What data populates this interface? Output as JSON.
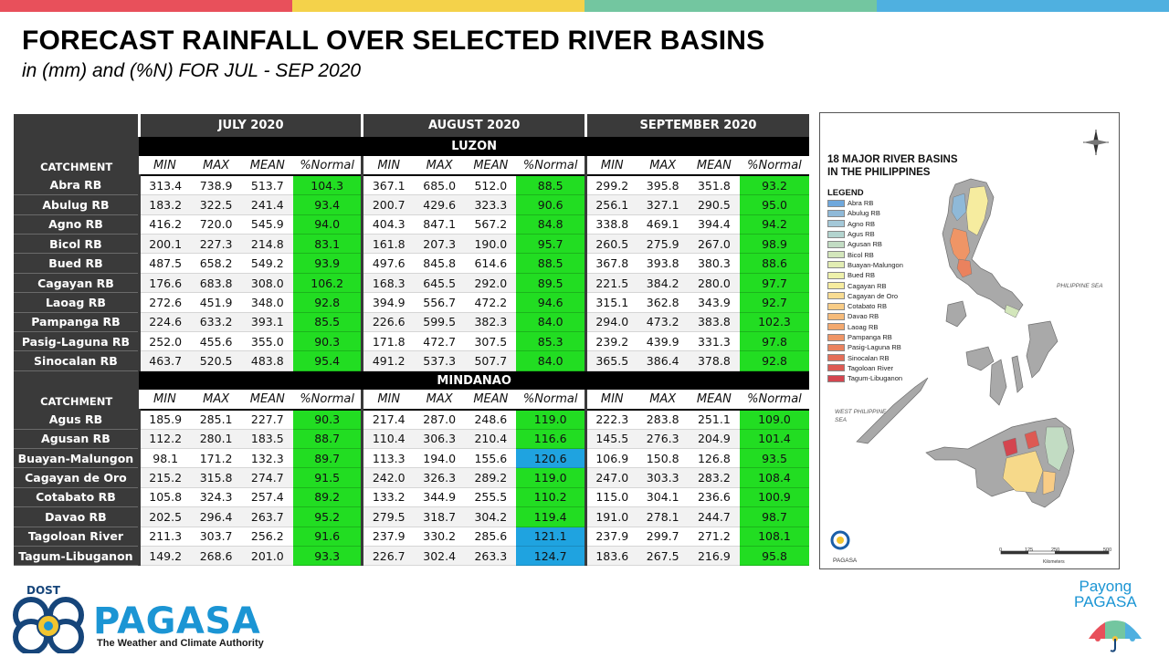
{
  "colors": {
    "bar1": "#e8505b",
    "bar2": "#f4d24a",
    "bar3": "#73c6a0",
    "bar4": "#4fb0e0",
    "green": "#22dd22",
    "blue": "#1fa3e0"
  },
  "title": "FORECAST RAINFALL OVER SELECTED RIVER BASINS",
  "subtitle": "in (mm) and (%N) FOR JUL - SEP 2020",
  "table": {
    "months": [
      "JULY 2020",
      "AUGUST 2020",
      "SEPTEMBER 2020"
    ],
    "catchment_label": "CATCHMENT",
    "col_headers": [
      "MIN",
      "MAX",
      "MEAN",
      "%Normal"
    ],
    "luzon": {
      "label": "LUZON",
      "rows": [
        {
          "name": "Abra RB",
          "v": [
            "313.4",
            "738.9",
            "513.7",
            "104.3",
            "367.1",
            "685.0",
            "512.0",
            "88.5",
            "299.2",
            "395.8",
            "351.8",
            "93.2"
          ],
          "c": [
            "g",
            "g",
            "g"
          ]
        },
        {
          "name": "Abulug RB",
          "v": [
            "183.2",
            "322.5",
            "241.4",
            "93.4",
            "200.7",
            "429.6",
            "323.3",
            "90.6",
            "256.1",
            "327.1",
            "290.5",
            "95.0"
          ],
          "c": [
            "g",
            "g",
            "g"
          ]
        },
        {
          "name": "Agno RB",
          "v": [
            "416.2",
            "720.0",
            "545.9",
            "94.0",
            "404.3",
            "847.1",
            "567.2",
            "84.8",
            "338.8",
            "469.1",
            "394.4",
            "94.2"
          ],
          "c": [
            "g",
            "g",
            "g"
          ]
        },
        {
          "name": "Bicol RB",
          "v": [
            "200.1",
            "227.3",
            "214.8",
            "83.1",
            "161.8",
            "207.3",
            "190.0",
            "95.7",
            "260.5",
            "275.9",
            "267.0",
            "98.9"
          ],
          "c": [
            "g",
            "g",
            "g"
          ]
        },
        {
          "name": "Bued RB",
          "v": [
            "487.5",
            "658.2",
            "549.2",
            "93.9",
            "497.6",
            "845.8",
            "614.6",
            "88.5",
            "367.8",
            "393.8",
            "380.3",
            "88.6"
          ],
          "c": [
            "g",
            "g",
            "g"
          ]
        },
        {
          "name": "Cagayan RB",
          "v": [
            "176.6",
            "683.8",
            "308.0",
            "106.2",
            "168.3",
            "645.5",
            "292.0",
            "89.5",
            "221.5",
            "384.2",
            "280.0",
            "97.7"
          ],
          "c": [
            "g",
            "g",
            "g"
          ]
        },
        {
          "name": "Laoag RB",
          "v": [
            "272.6",
            "451.9",
            "348.0",
            "92.8",
            "394.9",
            "556.7",
            "472.2",
            "94.6",
            "315.1",
            "362.8",
            "343.9",
            "92.7"
          ],
          "c": [
            "g",
            "g",
            "g"
          ]
        },
        {
          "name": "Pampanga RB",
          "v": [
            "224.6",
            "633.2",
            "393.1",
            "85.5",
            "226.6",
            "599.5",
            "382.3",
            "84.0",
            "294.0",
            "473.2",
            "383.8",
            "102.3"
          ],
          "c": [
            "g",
            "g",
            "g"
          ]
        },
        {
          "name": "Pasig-Laguna RB",
          "v": [
            "252.0",
            "455.6",
            "355.0",
            "90.3",
            "171.8",
            "472.7",
            "307.5",
            "85.3",
            "239.2",
            "439.9",
            "331.3",
            "97.8"
          ],
          "c": [
            "g",
            "g",
            "g"
          ]
        },
        {
          "name": "Sinocalan RB",
          "v": [
            "463.7",
            "520.5",
            "483.8",
            "95.4",
            "491.2",
            "537.3",
            "507.7",
            "84.0",
            "365.5",
            "386.4",
            "378.8",
            "92.8"
          ],
          "c": [
            "g",
            "g",
            "g"
          ]
        }
      ]
    },
    "mindanao": {
      "label": "MINDANAO",
      "rows": [
        {
          "name": "Agus RB",
          "v": [
            "185.9",
            "285.1",
            "227.7",
            "90.3",
            "217.4",
            "287.0",
            "248.6",
            "119.0",
            "222.3",
            "283.8",
            "251.1",
            "109.0"
          ],
          "c": [
            "g",
            "g",
            "g"
          ]
        },
        {
          "name": "Agusan RB",
          "v": [
            "112.2",
            "280.1",
            "183.5",
            "88.7",
            "110.4",
            "306.3",
            "210.4",
            "116.6",
            "145.5",
            "276.3",
            "204.9",
            "101.4"
          ],
          "c": [
            "g",
            "g",
            "g"
          ]
        },
        {
          "name": "Buayan-Malungon",
          "v": [
            "98.1",
            "171.2",
            "132.3",
            "89.7",
            "113.3",
            "194.0",
            "155.6",
            "120.6",
            "106.9",
            "150.8",
            "126.8",
            "93.5"
          ],
          "c": [
            "g",
            "b",
            "g"
          ]
        },
        {
          "name": "Cagayan de Oro",
          "v": [
            "215.2",
            "315.8",
            "274.7",
            "91.5",
            "242.0",
            "326.3",
            "289.2",
            "119.0",
            "247.0",
            "303.3",
            "283.2",
            "108.4"
          ],
          "c": [
            "g",
            "g",
            "g"
          ]
        },
        {
          "name": "Cotabato RB",
          "v": [
            "105.8",
            "324.3",
            "257.4",
            "89.2",
            "133.2",
            "344.9",
            "255.5",
            "110.2",
            "115.0",
            "304.1",
            "236.6",
            "100.9"
          ],
          "c": [
            "g",
            "g",
            "g"
          ]
        },
        {
          "name": "Davao RB",
          "v": [
            "202.5",
            "296.4",
            "263.7",
            "95.2",
            "279.5",
            "318.7",
            "304.2",
            "119.4",
            "191.0",
            "278.1",
            "244.7",
            "98.7"
          ],
          "c": [
            "g",
            "g",
            "g"
          ]
        },
        {
          "name": "Tagoloan River",
          "v": [
            "211.3",
            "303.7",
            "256.2",
            "91.6",
            "237.9",
            "330.2",
            "285.6",
            "121.1",
            "237.9",
            "299.7",
            "271.2",
            "108.1"
          ],
          "c": [
            "g",
            "b",
            "g"
          ]
        },
        {
          "name": "Tagum-Libuganon",
          "v": [
            "149.2",
            "268.6",
            "201.0",
            "93.3",
            "226.7",
            "302.4",
            "263.3",
            "124.7",
            "183.6",
            "267.5",
            "216.9",
            "95.8"
          ],
          "c": [
            "g",
            "b",
            "g"
          ]
        }
      ]
    }
  },
  "map": {
    "title_line1": "18 MAJOR RIVER BASINS",
    "title_line2": "IN THE PHILIPPINES",
    "legend_title": "LEGEND",
    "legend": [
      {
        "label": "Abra RB",
        "color": "#6fa8dc"
      },
      {
        "label": "Abulug RB",
        "color": "#8fb9d8"
      },
      {
        "label": "Agno RB",
        "color": "#a4c8d8"
      },
      {
        "label": "Agus RB",
        "color": "#b3d4cf"
      },
      {
        "label": "Agusan RB",
        "color": "#c2dcc3"
      },
      {
        "label": "Bicol RB",
        "color": "#d3e6bb"
      },
      {
        "label": "Buayan-Malungon",
        "color": "#e2edb3"
      },
      {
        "label": "Bued RB",
        "color": "#eef1ab"
      },
      {
        "label": "Cagayan RB",
        "color": "#f6ec9f"
      },
      {
        "label": "Cagayan de Oro",
        "color": "#f8dc92"
      },
      {
        "label": "Cotabato RB",
        "color": "#f8cc86"
      },
      {
        "label": "Davao RB",
        "color": "#f6bb7a"
      },
      {
        "label": "Laoag RB",
        "color": "#f3a96f"
      },
      {
        "label": "Pampanga RB",
        "color": "#ef9566"
      },
      {
        "label": "Pasig-Laguna RB",
        "color": "#ea825e"
      },
      {
        "label": "Sinocalan RB",
        "color": "#e46e58"
      },
      {
        "label": "Tagoloan River",
        "color": "#dd5a53"
      },
      {
        "label": "Tagum-Libuganon",
        "color": "#d4454f"
      }
    ],
    "sea_east": "PHILIPPINE SEA",
    "sea_west": "WEST PHILIPPINE SEA",
    "org": "PAGASA",
    "scale": [
      "0",
      "125",
      "250",
      "500"
    ],
    "scale_unit": "Kilometers"
  },
  "footer": {
    "dost": "DOST",
    "pagasa": "PAGASA",
    "tagline": "The Weather and Climate Authority",
    "payong_line1": "Payong",
    "payong_line2": "PAGASA"
  }
}
